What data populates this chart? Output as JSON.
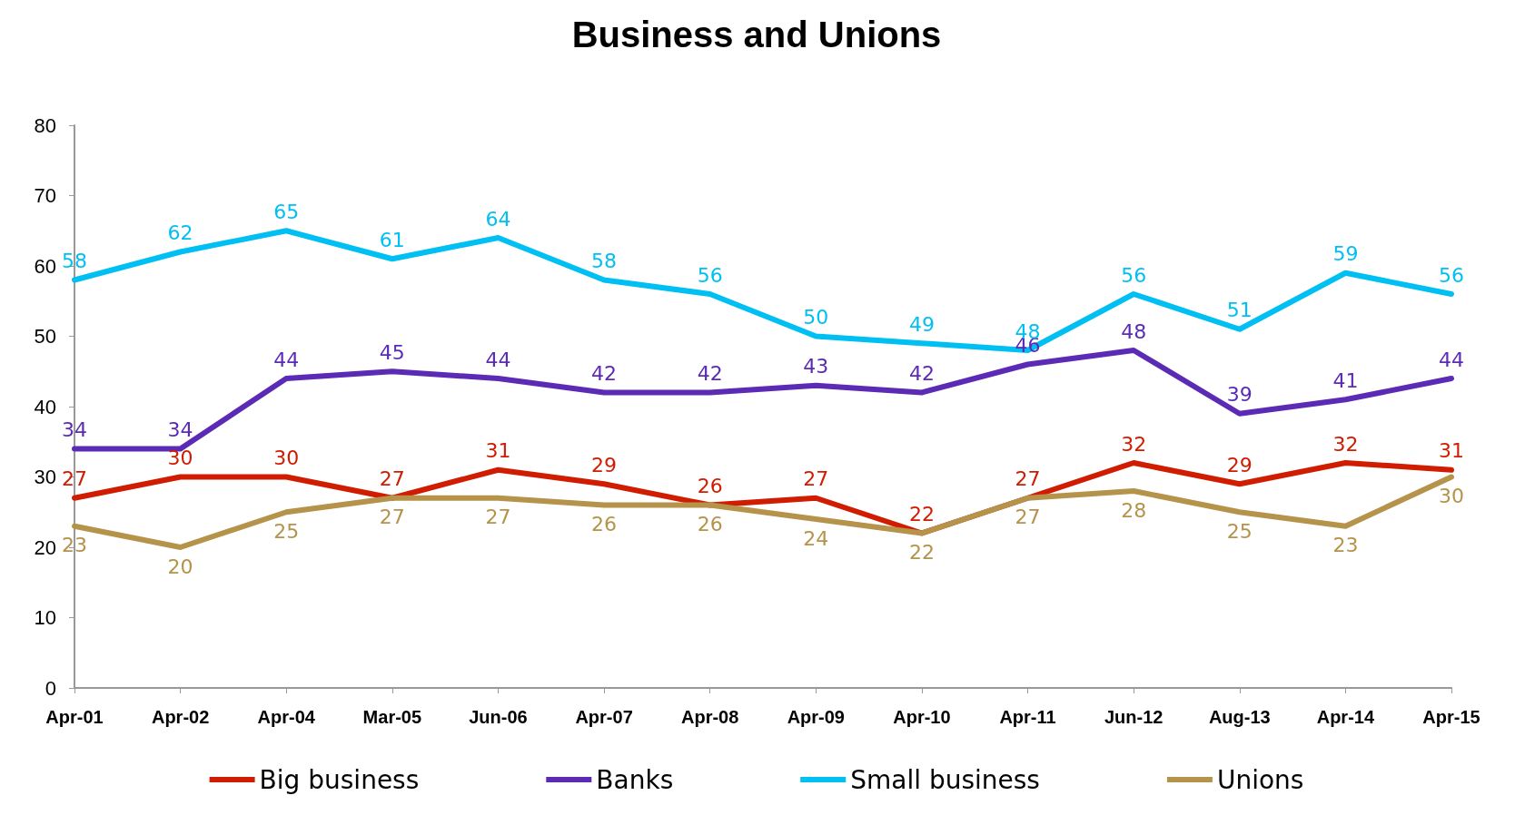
{
  "chart_data": {
    "type": "line",
    "title": "Business and Unions",
    "categories": [
      "Apr-01",
      "Apr-02",
      "Apr-04",
      "Mar-05",
      "Jun-06",
      "Apr-07",
      "Apr-08",
      "Apr-09",
      "Apr-10",
      "Apr-11",
      "Jun-12",
      "Aug-13",
      "Apr-14",
      "Apr-15"
    ],
    "series": [
      {
        "name": "Big business",
        "color": "#d01c00",
        "values": [
          27,
          30,
          30,
          27,
          31,
          29,
          26,
          27,
          22,
          27,
          32,
          29,
          32,
          31
        ]
      },
      {
        "name": "Banks",
        "color": "#5b2bb5",
        "values": [
          34,
          34,
          44,
          45,
          44,
          42,
          42,
          43,
          42,
          46,
          48,
          39,
          41,
          44
        ]
      },
      {
        "name": "Small business",
        "color": "#00bff3",
        "values": [
          58,
          62,
          65,
          61,
          64,
          58,
          56,
          50,
          49,
          48,
          56,
          51,
          59,
          56
        ]
      },
      {
        "name": "Unions",
        "color": "#b5934a",
        "values": [
          23,
          20,
          25,
          27,
          27,
          26,
          26,
          24,
          22,
          27,
          28,
          25,
          23,
          30
        ]
      }
    ],
    "ylim": [
      0,
      80
    ],
    "yticks": [
      0,
      10,
      20,
      30,
      40,
      50,
      60,
      70,
      80
    ],
    "grid": false,
    "legend": "bottom",
    "data_labels": true,
    "marker": "none",
    "line_style": "solid"
  }
}
